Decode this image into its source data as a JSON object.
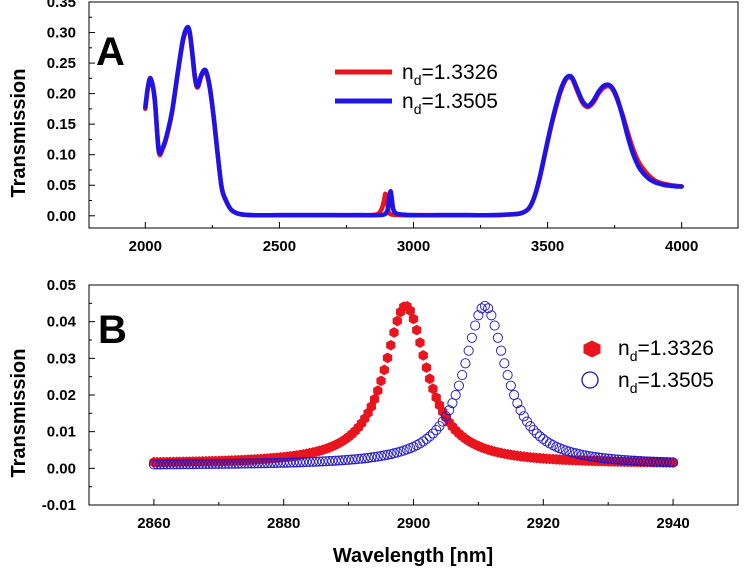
{
  "chart_data": [
    {
      "type": "line",
      "panel_label": "A",
      "xlabel": "",
      "ylabel": "Transmission",
      "xlim": [
        1790,
        4210
      ],
      "ylim": [
        -0.02,
        0.35
      ],
      "xticks": [
        "2000",
        "2500",
        "3000",
        "3500",
        "4000"
      ],
      "xtick_values": [
        2000,
        2500,
        3000,
        3500,
        4000
      ],
      "yticks": [
        "0.00",
        "0.05",
        "0.10",
        "0.15",
        "0.20",
        "0.25",
        "0.30",
        "0.35"
      ],
      "ytick_values": [
        0.0,
        0.05,
        0.1,
        0.15,
        0.2,
        0.25,
        0.3,
        0.35
      ],
      "legend_position": "top-center",
      "series": [
        {
          "name": "n_d=1.3326",
          "legend_main": "n",
          "legend_sub": "d",
          "legend_rest": "=1.3326",
          "color": "#e8141e",
          "x": [
            2000,
            2010,
            2020,
            2035,
            2050,
            2065,
            2080,
            2100,
            2120,
            2140,
            2155,
            2165,
            2175,
            2185,
            2195,
            2210,
            2225,
            2240,
            2255,
            2270,
            2285,
            2300,
            2320,
            2350,
            2400,
            2500,
            2600,
            2700,
            2800,
            2860,
            2880,
            2890,
            2895,
            2900,
            2905,
            2910,
            2920,
            2950,
            3000,
            3100,
            3200,
            3300,
            3350,
            3400,
            3430,
            3450,
            3470,
            3490,
            3510,
            3530,
            3550,
            3570,
            3590,
            3610,
            3630,
            3650,
            3670,
            3690,
            3710,
            3730,
            3745,
            3760,
            3780,
            3800,
            3820,
            3840,
            3860,
            3880,
            3900,
            3920,
            3940,
            3960,
            3980,
            4000
          ],
          "y": [
            0.175,
            0.21,
            0.225,
            0.19,
            0.105,
            0.11,
            0.13,
            0.17,
            0.23,
            0.285,
            0.305,
            0.3,
            0.265,
            0.225,
            0.21,
            0.23,
            0.235,
            0.21,
            0.16,
            0.1,
            0.045,
            0.025,
            0.01,
            0.003,
            0.001,
            0.001,
            0.001,
            0.001,
            0.001,
            0.002,
            0.01,
            0.025,
            0.036,
            0.03,
            0.01,
            0.004,
            0.002,
            0.001,
            0.001,
            0.001,
            0.001,
            0.001,
            0.002,
            0.004,
            0.012,
            0.03,
            0.06,
            0.1,
            0.14,
            0.175,
            0.205,
            0.224,
            0.225,
            0.205,
            0.185,
            0.178,
            0.185,
            0.2,
            0.21,
            0.212,
            0.205,
            0.19,
            0.165,
            0.135,
            0.108,
            0.088,
            0.075,
            0.065,
            0.058,
            0.054,
            0.052,
            0.05,
            0.049,
            0.048
          ]
        },
        {
          "name": "n_d=1.3505",
          "legend_main": "n",
          "legend_sub": "d",
          "legend_rest": "=1.3505",
          "color": "#1e14e8",
          "x": [
            2000,
            2010,
            2020,
            2035,
            2050,
            2065,
            2080,
            2100,
            2120,
            2140,
            2155,
            2165,
            2175,
            2185,
            2195,
            2210,
            2225,
            2240,
            2255,
            2270,
            2285,
            2300,
            2320,
            2350,
            2400,
            2500,
            2600,
            2700,
            2800,
            2870,
            2890,
            2900,
            2905,
            2910,
            2915,
            2920,
            2925,
            2935,
            2960,
            3000,
            3100,
            3200,
            3300,
            3350,
            3400,
            3430,
            3450,
            3470,
            3490,
            3510,
            3530,
            3550,
            3570,
            3590,
            3610,
            3630,
            3650,
            3670,
            3690,
            3710,
            3730,
            3745,
            3760,
            3780,
            3800,
            3820,
            3840,
            3860,
            3880,
            3900,
            3920,
            3940,
            3960,
            3980,
            4000
          ],
          "y": [
            0.178,
            0.212,
            0.224,
            0.192,
            0.108,
            0.112,
            0.132,
            0.172,
            0.232,
            0.288,
            0.308,
            0.302,
            0.268,
            0.228,
            0.212,
            0.232,
            0.238,
            0.212,
            0.162,
            0.1,
            0.046,
            0.026,
            0.01,
            0.003,
            0.001,
            0.001,
            0.001,
            0.001,
            0.001,
            0.001,
            0.002,
            0.006,
            0.012,
            0.03,
            0.04,
            0.025,
            0.01,
            0.004,
            0.002,
            0.001,
            0.001,
            0.001,
            0.001,
            0.002,
            0.004,
            0.012,
            0.03,
            0.062,
            0.102,
            0.142,
            0.178,
            0.208,
            0.226,
            0.227,
            0.208,
            0.188,
            0.18,
            0.188,
            0.203,
            0.213,
            0.214,
            0.207,
            0.192,
            0.162,
            0.128,
            0.1,
            0.08,
            0.068,
            0.06,
            0.055,
            0.052,
            0.05,
            0.049,
            0.048,
            0.048
          ]
        }
      ]
    },
    {
      "type": "scatter",
      "panel_label": "B",
      "xlabel": "Wavelength [nm]",
      "ylabel": "Transmission",
      "xlim": [
        2850,
        2950
      ],
      "ylim": [
        -0.01,
        0.05
      ],
      "xticks": [
        "2860",
        "2880",
        "2900",
        "2920",
        "2940"
      ],
      "xtick_values": [
        2860,
        2880,
        2900,
        2920,
        2940
      ],
      "yticks": [
        "-0.01",
        "0.00",
        "0.01",
        "0.02",
        "0.03",
        "0.04",
        "0.05"
      ],
      "ytick_values": [
        -0.01,
        0.0,
        0.01,
        0.02,
        0.03,
        0.04,
        0.05
      ],
      "legend_position": "right",
      "series": [
        {
          "name": "n_d=1.3326",
          "legend_main": "n",
          "legend_sub": "d",
          "legend_rest": "=1.3326",
          "color": "#e8141e",
          "marker": "filled-hexagon",
          "center": 2898.8,
          "peak": 0.0443,
          "fwhm": 8.0,
          "baseline": 0.0012,
          "x_start": 2860,
          "x_end": 2940,
          "x_step": 0.5
        },
        {
          "name": "n_d=1.3505",
          "legend_main": "n",
          "legend_sub": "d",
          "legend_rest": "=1.3505",
          "color": "#1e14c8",
          "marker": "open-circle",
          "center": 2911,
          "peak": 0.0443,
          "fwhm": 8.0,
          "baseline": 0.0008,
          "x_start": 2860,
          "x_end": 2940,
          "x_step": 0.5
        }
      ]
    }
  ]
}
